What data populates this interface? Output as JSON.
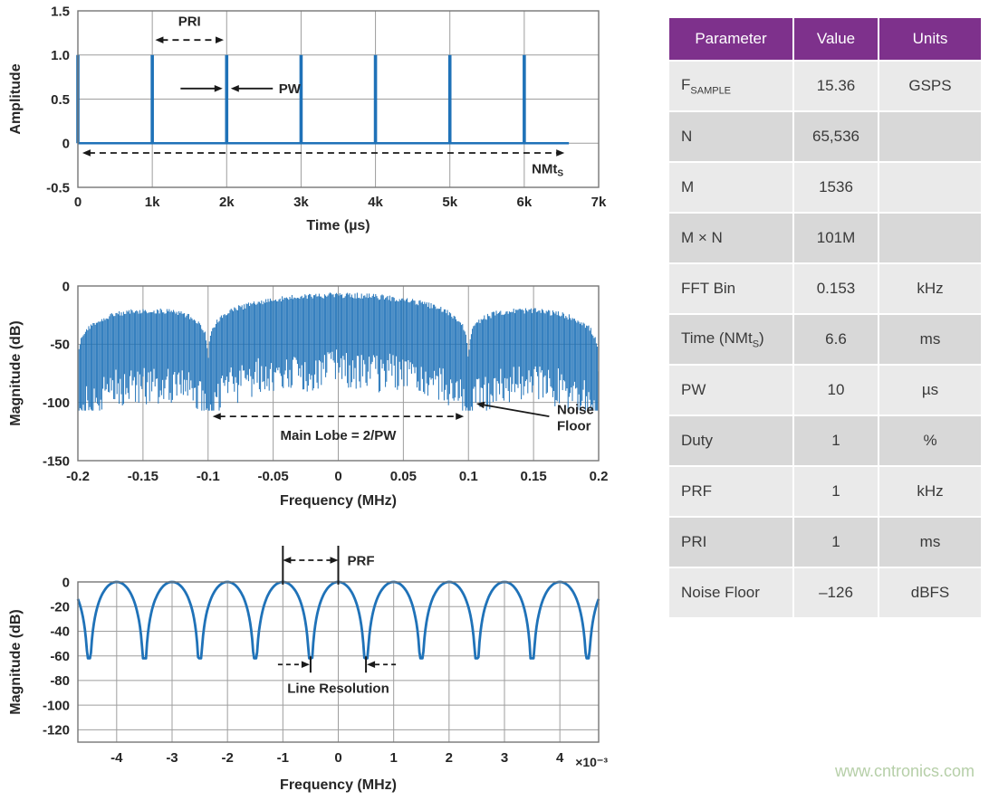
{
  "watermark": "www.cntronics.com",
  "colors": {
    "line_blue": "#1f72b8",
    "grid": "#9e9e9e",
    "frame": "#767676",
    "text": "#262626",
    "annotation": "#1a1a1a",
    "table_header_bg": "#7e318c",
    "table_header_text": "#ffffff",
    "row_light": "#eaeaea",
    "row_dark": "#d8d8d8",
    "watermark": "#b6cfa8"
  },
  "table": {
    "columns": [
      "Parameter",
      "Value",
      "Units"
    ],
    "rows": [
      [
        "F_{SAMPLE}",
        "15.36",
        "GSPS"
      ],
      [
        "N",
        "65,536",
        ""
      ],
      [
        "M",
        "1536",
        ""
      ],
      [
        "M × N",
        "101M",
        ""
      ],
      [
        "FFT Bin",
        "0.153",
        "kHz"
      ],
      [
        "Time (NMt_{S})",
        "6.6",
        "ms"
      ],
      [
        "PW",
        "10",
        "µs"
      ],
      [
        "Duty",
        "1",
        "%"
      ],
      [
        "PRF",
        "1",
        "kHz"
      ],
      [
        "PRI",
        "1",
        "ms"
      ],
      [
        "Noise Floor",
        "–126",
        "dBFS"
      ]
    ]
  },
  "chart_data": [
    {
      "name": "pulse-train",
      "type": "line",
      "title": "Pulsed waveform in time domain",
      "xlabel": "Time (µs)",
      "ylabel": "Amplitude",
      "xlim": [
        0,
        7000
      ],
      "ylim": [
        -0.5,
        1.5
      ],
      "xticks": [
        {
          "v": 0,
          "label": "0"
        },
        {
          "v": 1000,
          "label": "1k"
        },
        {
          "v": 2000,
          "label": "2k"
        },
        {
          "v": 3000,
          "label": "3k"
        },
        {
          "v": 4000,
          "label": "4k"
        },
        {
          "v": 5000,
          "label": "5k"
        },
        {
          "v": 6000,
          "label": "6k"
        },
        {
          "v": 7000,
          "label": "7k"
        }
      ],
      "yticks": [
        {
          "v": 1.5,
          "label": "1.5"
        },
        {
          "v": 1.0,
          "label": "1.0"
        },
        {
          "v": 0.5,
          "label": "0.5"
        },
        {
          "v": 0,
          "label": "0"
        },
        {
          "v": -0.5,
          "label": "-0.5"
        }
      ],
      "series": {
        "kind": "pulse_train",
        "pulse_positions": [
          0,
          1000,
          2000,
          3000,
          4000,
          5000,
          6000
        ],
        "amplitude": 1,
        "baseline": 0,
        "pulse_width_us": 10,
        "end": 6600
      },
      "annotations": [
        {
          "kind": "darrow",
          "x1": 1040,
          "x2": 1960,
          "y": 1.17,
          "label": "PRI",
          "lx": 1500,
          "ly": 1.33
        },
        {
          "kind": "arrow",
          "x1": 1380,
          "y1": 0.62,
          "x2": 1945,
          "y2": 0.62
        },
        {
          "kind": "arrow",
          "x1": 2620,
          "y1": 0.62,
          "x2": 2055,
          "y2": 0.62
        },
        {
          "kind": "text",
          "label": "PW",
          "lx": 2700,
          "ly": 0.62,
          "anchor": "start",
          "vmiddle": true
        },
        {
          "kind": "darrow",
          "x1": 60,
          "x2": 6540,
          "y": -0.11,
          "label": "NMt_{S}",
          "lx": 6100,
          "ly": -0.34,
          "anchor": "start"
        }
      ]
    },
    {
      "name": "pulse-spectrum",
      "type": "line",
      "title": "Spectrum of pulsed waveform, sinc envelope",
      "xlabel": "Frequency (MHz)",
      "ylabel": "Magnitude (dB)",
      "xlim": [
        -0.2,
        0.2
      ],
      "ylim": [
        -150,
        0
      ],
      "xticks": [
        {
          "v": -0.2,
          "label": "-0.2"
        },
        {
          "v": -0.15,
          "label": "-0.15"
        },
        {
          "v": -0.1,
          "label": "-0.1"
        },
        {
          "v": -0.05,
          "label": "-0.05"
        },
        {
          "v": 0,
          "label": "0"
        },
        {
          "v": 0.05,
          "label": "0.05"
        },
        {
          "v": 0.1,
          "label": "0.1"
        },
        {
          "v": 0.15,
          "label": "0.15"
        },
        {
          "v": 0.2,
          "label": "0.2"
        }
      ],
      "yticks": [
        {
          "v": 0,
          "label": "0"
        },
        {
          "v": -50,
          "label": "-50"
        },
        {
          "v": -100,
          "label": "-100"
        },
        {
          "v": -150,
          "label": "-150"
        }
      ],
      "series": {
        "kind": "pulse_spectrum",
        "main_lobe_null": 0.1,
        "envelope_top_db": -8,
        "null_floor_db": -105,
        "mass_depth_db": [
          48,
          80
        ]
      },
      "annotations": [
        {
          "kind": "darrow",
          "x1": -0.0965,
          "x2": 0.0965,
          "y": -112,
          "label": "Main Lobe = 2/PW",
          "lx": 0,
          "ly": -132
        },
        {
          "kind": "arrow",
          "x1": 0.162,
          "y1": -112,
          "x2": 0.106,
          "y2": -101
        },
        {
          "kind": "text",
          "lines": [
            "Noise",
            "Floor"
          ],
          "lx": 0.168,
          "ly": -110,
          "anchor": "start"
        }
      ]
    },
    {
      "name": "spectral-lines",
      "type": "line",
      "title": "Zoomed spectrum showing PRF lines",
      "xlabel": "Frequency (MHz)",
      "xscale": "×10⁻³",
      "ylabel": "Magnitude (dB)",
      "xlim": [
        -0.0047,
        0.0047
      ],
      "ylim": [
        -130,
        0
      ],
      "xticks": [
        {
          "v": -0.004,
          "label": "-4"
        },
        {
          "v": -0.003,
          "label": "-3"
        },
        {
          "v": -0.002,
          "label": "-2"
        },
        {
          "v": -0.001,
          "label": "-1"
        },
        {
          "v": 0,
          "label": "0"
        },
        {
          "v": 0.001,
          "label": "1"
        },
        {
          "v": 0.002,
          "label": "2"
        },
        {
          "v": 0.003,
          "label": "3"
        },
        {
          "v": 0.004,
          "label": "4"
        }
      ],
      "yticks": [
        {
          "v": 0,
          "label": "0"
        },
        {
          "v": -20,
          "label": "-20"
        },
        {
          "v": -40,
          "label": "-40"
        },
        {
          "v": -60,
          "label": "-60"
        },
        {
          "v": -80,
          "label": "-80"
        },
        {
          "v": -100,
          "label": "-100"
        },
        {
          "v": -120,
          "label": "-120"
        }
      ],
      "series": {
        "kind": "scalloped_lines",
        "peak_spacing": 0.001,
        "peak_db": 0,
        "null_db": -60,
        "log_slope": 60
      },
      "annotations": [
        {
          "kind": "prf",
          "x1": -0.001,
          "x2": 0,
          "label": "PRF"
        },
        {
          "kind": "lineres",
          "x1": -0.0005,
          "x2": 0.0005,
          "y": -67,
          "label": "Line Resolution",
          "lx": 0,
          "ly": -90
        }
      ]
    }
  ]
}
